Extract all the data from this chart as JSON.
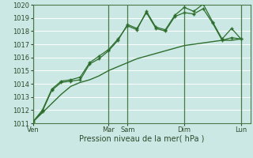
{
  "title": "",
  "xlabel": "Pression niveau de la mer( hPa )",
  "ylim": [
    1011,
    1020
  ],
  "xlim": [
    0,
    23
  ],
  "bg_color": "#cce8e4",
  "grid_color": "#ffffff",
  "line_color": "#2d6e2d",
  "day_labels": [
    "Ven",
    "Mar",
    "Sam",
    "Dim",
    "Lun"
  ],
  "day_positions": [
    0,
    8,
    10,
    16,
    22
  ],
  "vline_positions": [
    0,
    8,
    10,
    16,
    22
  ],
  "series1_x": [
    0,
    1,
    2,
    3,
    4,
    5,
    6,
    7,
    8,
    9,
    10,
    11,
    12,
    13,
    14,
    15,
    16,
    17,
    18,
    19,
    20,
    21,
    22
  ],
  "series1_y": [
    1011.1,
    1011.8,
    1012.5,
    1013.2,
    1013.8,
    1014.1,
    1014.3,
    1014.6,
    1015.0,
    1015.3,
    1015.6,
    1015.9,
    1016.1,
    1016.3,
    1016.5,
    1016.7,
    1016.9,
    1017.0,
    1017.1,
    1017.2,
    1017.3,
    1017.3,
    1017.4
  ],
  "series2_x": [
    0,
    1,
    2,
    3,
    4,
    5,
    6,
    7,
    8,
    9,
    10,
    11,
    12,
    13,
    14,
    15,
    16,
    17,
    18,
    19,
    20,
    21,
    22
  ],
  "series2_y": [
    1011.1,
    1012.0,
    1013.6,
    1014.2,
    1014.3,
    1014.5,
    1015.6,
    1016.1,
    1016.6,
    1017.4,
    1018.4,
    1018.1,
    1019.5,
    1018.3,
    1018.1,
    1019.2,
    1019.8,
    1019.5,
    1020.05,
    1018.7,
    1017.4,
    1018.2,
    1017.4
  ],
  "series3_x": [
    0,
    1,
    2,
    3,
    4,
    5,
    6,
    7,
    8,
    9,
    10,
    11,
    12,
    13,
    14,
    15,
    16,
    17,
    18,
    19,
    20,
    21,
    22
  ],
  "series3_y": [
    1011.1,
    1011.9,
    1013.5,
    1014.1,
    1014.2,
    1014.3,
    1015.5,
    1015.9,
    1016.5,
    1017.3,
    1018.5,
    1018.2,
    1019.4,
    1018.2,
    1018.0,
    1019.1,
    1019.4,
    1019.3,
    1019.7,
    1018.6,
    1017.3,
    1017.5,
    1017.4
  ]
}
